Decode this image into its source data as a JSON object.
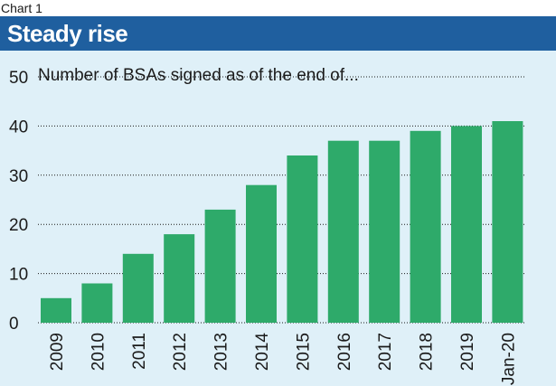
{
  "header": {
    "kicker": "Chart 1",
    "title": "Steady rise"
  },
  "colors": {
    "title_bar": "#1f5f9f",
    "plot_background": "#dff0f8",
    "bar": "#2eaa6a",
    "grid": "#1a1a1a"
  },
  "chart_data": {
    "type": "bar",
    "title": "Steady rise",
    "subtitle": "Number of BSAs signed as of the end of...",
    "xlabel": "",
    "ylabel": "",
    "categories": [
      "2009",
      "2010",
      "2011",
      "2012",
      "2013",
      "2014",
      "2015",
      "2016",
      "2017",
      "2018",
      "2019",
      "Jan-20"
    ],
    "values": [
      5,
      8,
      14,
      18,
      23,
      28,
      34,
      37,
      37,
      39,
      40,
      41
    ],
    "ylim": [
      0,
      50
    ],
    "yticks": [
      "0",
      "10",
      "20",
      "30",
      "40",
      "50"
    ],
    "grid": "dotted horizontal",
    "legend": "none"
  }
}
